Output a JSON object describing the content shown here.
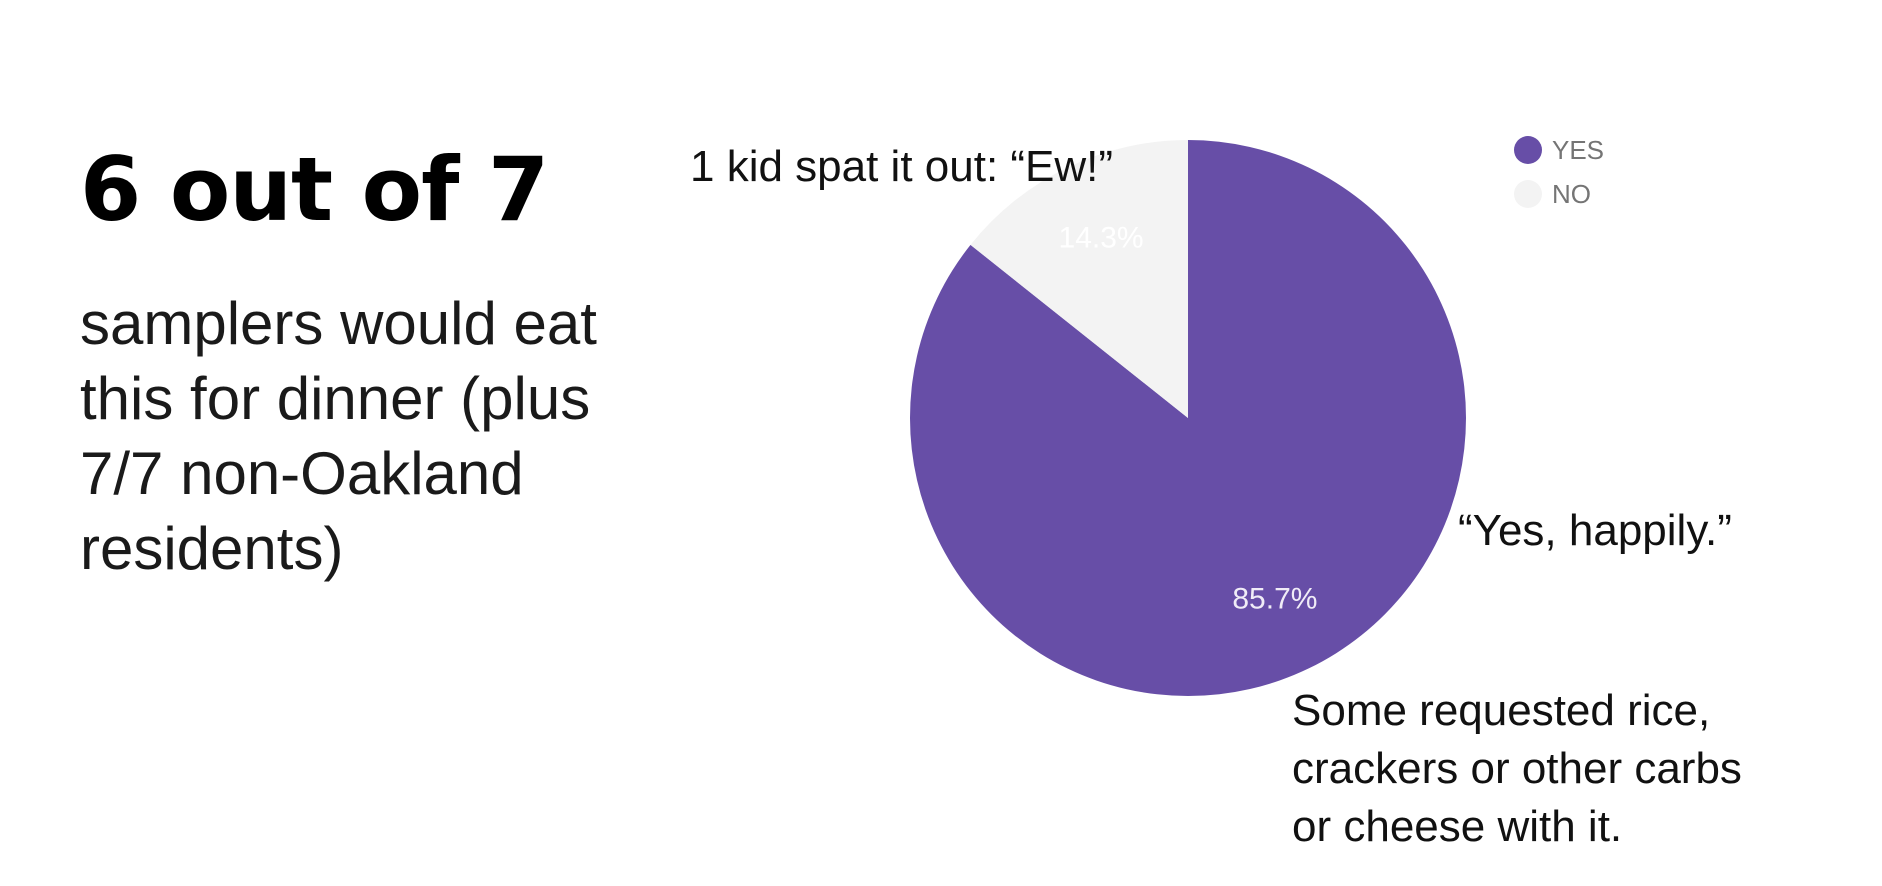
{
  "headline": "6 out of 7",
  "subtext": "samplers would eat this for dinner (plus 7/7 non-Oakland residents)",
  "annotations": {
    "ew": "1 kid spat it out: “Ew!”",
    "yes": "“Yes, happily.”",
    "rice": [
      "Some requested rice,",
      "crackers or other carbs",
      "or cheese with it."
    ]
  },
  "chart_data": {
    "type": "pie",
    "categories": [
      "YES",
      "NO"
    ],
    "values": [
      85.7,
      14.3
    ],
    "value_labels": [
      "85.7%",
      "14.3%"
    ],
    "colors": [
      "#674ea7",
      "#f3f3f3"
    ],
    "label_colors": [
      "#f0ecf7",
      "#ffffff"
    ],
    "legend_position": "top-right",
    "start_angle": "12 o'clock, clockwise"
  }
}
